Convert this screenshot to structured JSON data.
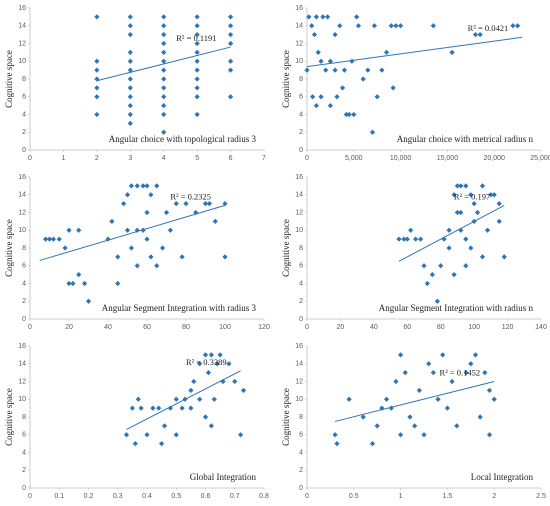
{
  "chart_data": [
    {
      "type": "scatter",
      "xlabel": "Angular choice with topological radius 3",
      "ylabel": "Cognitive space",
      "annotation": "R² = 0.1191",
      "color": "#2e75b6",
      "x": [
        2,
        2,
        2,
        2,
        2,
        2,
        2,
        3,
        3,
        3,
        3,
        3,
        3,
        3,
        3,
        3,
        3,
        3,
        3,
        4,
        4,
        4,
        4,
        4,
        4,
        4,
        4,
        4,
        4,
        4,
        4,
        4,
        5,
        5,
        5,
        5,
        5,
        5,
        5,
        5,
        5,
        5,
        5,
        6,
        6,
        6,
        6,
        6,
        6,
        6
      ],
      "values": [
        4,
        6,
        7,
        8,
        9,
        10,
        15,
        3,
        4,
        5,
        6,
        7,
        8,
        9,
        10,
        11,
        13,
        14,
        15,
        2,
        4,
        5,
        6,
        7,
        8,
        9,
        10,
        11,
        12,
        13,
        14,
        15,
        4,
        6,
        7,
        8,
        9,
        10,
        11,
        12,
        13,
        14,
        15,
        6,
        9,
        10,
        12,
        13,
        14,
        15
      ],
      "trendline": {
        "x": [
          2,
          6
        ],
        "y": [
          7.8,
          11.6
        ]
      },
      "xlim": [
        0,
        7
      ],
      "xticks": [
        0,
        1,
        2,
        3,
        4,
        5,
        6,
        7
      ],
      "ylim": [
        0,
        16
      ],
      "yticks": [
        0,
        2,
        4,
        6,
        8,
        10,
        12,
        14,
        16
      ]
    },
    {
      "type": "scatter",
      "xlabel": "Angular choice with metrical radius n",
      "ylabel": "Cognitive space",
      "annotation": "R² = 0.0421",
      "color": "#2e75b6",
      "x": [
        0,
        200,
        500,
        800,
        1000,
        1200,
        1500,
        1700,
        2000,
        2200,
        2500,
        3000,
        3200,
        3500,
        4000,
        4200,
        4500,
        5000,
        5300,
        5500,
        6000,
        6500,
        7000,
        7200,
        7500,
        8000,
        8500,
        9000,
        9200,
        9500,
        10000,
        13500,
        15500,
        18000,
        18500,
        22000,
        22500,
        1000,
        1500,
        2500,
        3000,
        600,
        4800,
        3800
      ],
      "values": [
        9,
        15,
        14,
        13,
        15,
        11,
        10,
        15,
        9,
        15,
        10,
        9,
        6,
        14,
        9,
        4,
        4,
        4,
        15,
        14,
        8,
        9,
        2,
        14,
        6,
        9,
        11,
        14,
        7,
        14,
        14,
        14,
        11,
        13,
        13,
        14,
        14,
        5,
        6,
        5,
        13,
        6,
        10,
        7
      ],
      "trendline": {
        "x": [
          0,
          23000
        ],
        "y": [
          9.4,
          12.7
        ]
      },
      "xlim": [
        0,
        25000
      ],
      "xticks": [
        0,
        {
          "value": 5000,
          "label": "5,000"
        },
        {
          "value": 10000,
          "label": "10,000"
        },
        {
          "value": 15000,
          "label": "15,000"
        },
        {
          "value": 20000,
          "label": "20,000"
        },
        {
          "value": 25000,
          "label": "25,000"
        }
      ],
      "ylim": [
        0,
        16
      ],
      "yticks": [
        0,
        2,
        4,
        6,
        8,
        10,
        12,
        14,
        16
      ]
    },
    {
      "type": "scatter",
      "xlabel": "Angular Segment Integration with radius 3",
      "ylabel": "Cognitive space",
      "annotation": "R² = 0.2325",
      "color": "#2e75b6",
      "x": [
        8,
        10,
        12,
        15,
        18,
        20,
        20,
        22,
        25,
        28,
        30,
        25,
        40,
        42,
        45,
        48,
        50,
        52,
        55,
        58,
        60,
        62,
        65,
        50,
        55,
        58,
        60,
        62,
        65,
        55,
        52,
        70,
        72,
        75,
        78,
        80,
        85,
        90,
        92,
        95,
        100,
        100,
        45,
        60,
        68
      ],
      "values": [
        9,
        9,
        9,
        9,
        8,
        10,
        4,
        4,
        5,
        4,
        2,
        10,
        9,
        11,
        4,
        13,
        14,
        15,
        15,
        15,
        15,
        14,
        15,
        10,
        10,
        10,
        9,
        7,
        6,
        6,
        8,
        12,
        10,
        13,
        7,
        13,
        12,
        13,
        13,
        11,
        7,
        13,
        7,
        12,
        8
      ],
      "trendline": {
        "x": [
          5,
          100
        ],
        "y": [
          6.6,
          12.8
        ]
      },
      "xlim": [
        0,
        120
      ],
      "xticks": [
        0,
        20,
        40,
        60,
        80,
        100,
        120
      ],
      "ylim": [
        0,
        16
      ],
      "yticks": [
        0,
        2,
        4,
        6,
        8,
        10,
        12,
        14,
        16
      ]
    },
    {
      "type": "scatter",
      "xlabel": "Angular Segment Integration with radius n",
      "ylabel": "Cognitive space",
      "annotation": "R² = 0.197",
      "color": "#2e75b6",
      "x": [
        55,
        58,
        60,
        62,
        65,
        68,
        70,
        72,
        75,
        78,
        80,
        82,
        85,
        88,
        90,
        92,
        95,
        98,
        90,
        92,
        95,
        100,
        102,
        105,
        108,
        110,
        112,
        115,
        115,
        118,
        95,
        98,
        88,
        85,
        100,
        105,
        92
      ],
      "values": [
        9,
        9,
        9,
        10,
        9,
        9,
        6,
        4,
        5,
        2,
        6,
        9,
        10,
        14,
        15,
        15,
        15,
        14,
        12,
        10,
        9,
        11,
        12,
        7,
        10,
        14,
        14,
        11,
        13,
        7,
        6,
        8,
        5,
        8,
        13,
        15,
        12
      ],
      "trendline": {
        "x": [
          55,
          118
        ],
        "y": [
          6.5,
          12.8
        ]
      },
      "xlim": [
        0,
        140
      ],
      "xticks": [
        0,
        20,
        40,
        60,
        80,
        100,
        120,
        140
      ],
      "ylim": [
        0,
        16
      ],
      "yticks": [
        0,
        2,
        4,
        6,
        8,
        10,
        12,
        14,
        16
      ]
    },
    {
      "type": "scatter",
      "xlabel": "Global Integration",
      "ylabel": "Cognitive space",
      "annotation": "R² = 0.3389",
      "color": "#2e75b6",
      "x": [
        0.33,
        0.35,
        0.36,
        0.37,
        0.38,
        0.4,
        0.42,
        0.44,
        0.45,
        0.46,
        0.48,
        0.5,
        0.5,
        0.52,
        0.53,
        0.55,
        0.56,
        0.58,
        0.6,
        0.61,
        0.62,
        0.63,
        0.64,
        0.65,
        0.66,
        0.68,
        0.7,
        0.72,
        0.73,
        0.6,
        0.62,
        0.55,
        0.58
      ],
      "values": [
        6,
        9,
        5,
        10,
        9,
        6,
        9,
        9,
        5,
        7,
        9,
        10,
        6,
        9,
        10,
        9,
        12,
        14,
        15,
        13,
        15,
        10,
        14,
        15,
        12,
        14,
        12,
        6,
        11,
        8,
        7,
        11,
        10
      ],
      "trendline": {
        "x": [
          0.33,
          0.72
        ],
        "y": [
          6.6,
          13.2
        ]
      },
      "xlim": [
        0,
        0.8
      ],
      "xticks": [
        0,
        0.1,
        0.2,
        0.3,
        0.4,
        0.5,
        0.6,
        0.7,
        0.8
      ],
      "ylim": [
        0,
        16
      ],
      "yticks": [
        0,
        2,
        4,
        6,
        8,
        10,
        12,
        14,
        16
      ]
    },
    {
      "type": "scatter",
      "xlabel": "Local Integration",
      "ylabel": "Cognitive space",
      "annotation": "R² = 0.1452",
      "color": "#2e75b6",
      "x": [
        0.3,
        0.32,
        0.45,
        0.6,
        0.7,
        0.75,
        0.8,
        0.85,
        0.9,
        0.95,
        1.0,
        1.05,
        1.1,
        1.15,
        1.2,
        1.3,
        1.35,
        1.4,
        1.45,
        1.5,
        1.55,
        1.6,
        1.7,
        1.75,
        1.8,
        1.85,
        1.9,
        1.95,
        1.95,
        2.0,
        1.0,
        1.25
      ],
      "values": [
        6,
        5,
        10,
        8,
        5,
        7,
        9,
        10,
        9,
        12,
        15,
        13,
        8,
        7,
        11,
        14,
        13,
        10,
        15,
        9,
        12,
        7,
        13,
        14,
        15,
        8,
        13,
        6,
        11,
        10,
        6,
        6
      ],
      "trendline": {
        "x": [
          0.3,
          2.0
        ],
        "y": [
          7.5,
          12
        ]
      },
      "xlim": [
        0,
        2.5
      ],
      "xticks": [
        0,
        0.5,
        1,
        1.5,
        2,
        2.5
      ],
      "ylim": [
        0,
        16
      ],
      "yticks": [
        0,
        2,
        4,
        6,
        8,
        10,
        12,
        14,
        16
      ]
    }
  ]
}
